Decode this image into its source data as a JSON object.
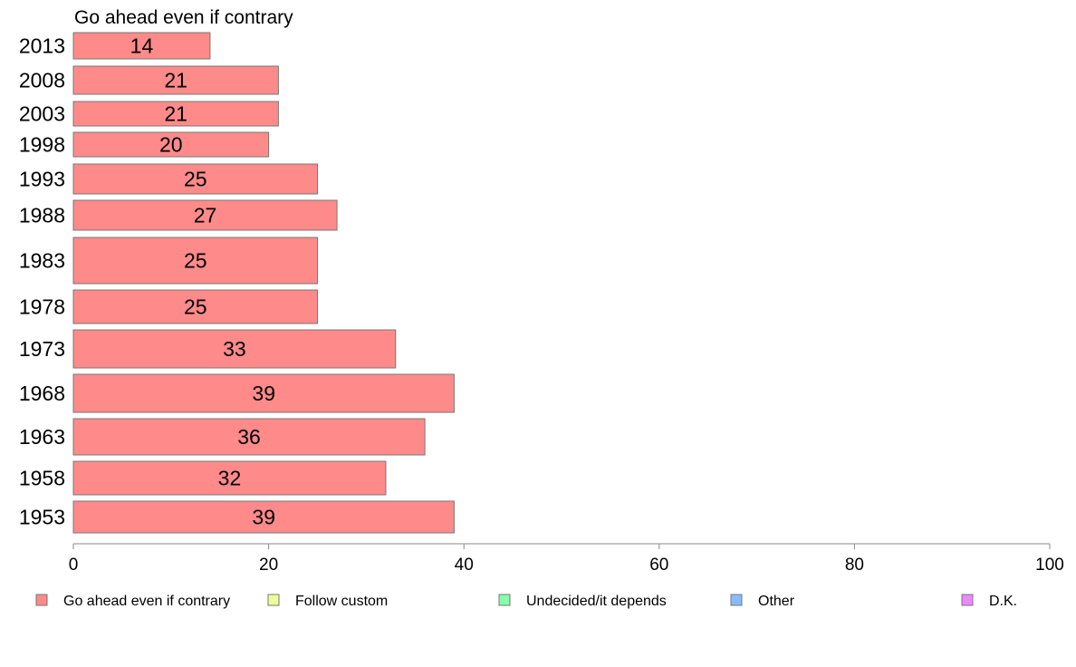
{
  "chart_data": {
    "type": "bar",
    "orientation": "horizontal",
    "title": "Go ahead even if contrary",
    "categories": [
      "2013",
      "2008",
      "2003",
      "1998",
      "1993",
      "1988",
      "1983",
      "1978",
      "1973",
      "1968",
      "1963",
      "1958",
      "1953"
    ],
    "series": [
      {
        "name": "Go ahead even if contrary",
        "color": "#ff8a8a",
        "values": [
          14,
          21,
          21,
          20,
          25,
          27,
          25,
          25,
          33,
          39,
          36,
          32,
          39
        ]
      }
    ],
    "xlim": [
      0,
      100
    ],
    "xticks": [
      0,
      20,
      40,
      60,
      80,
      100
    ],
    "grid": false,
    "legend_position": "bottom",
    "legend": [
      {
        "name": "Go ahead even if contrary",
        "color": "#ff8a8a"
      },
      {
        "name": "Follow custom",
        "color": "#eeff99"
      },
      {
        "name": "Undecided/it depends",
        "color": "#88ffaa"
      },
      {
        "name": "Other",
        "color": "#88bbff"
      },
      {
        "name": "D.K.",
        "color": "#ee88ff"
      }
    ]
  }
}
